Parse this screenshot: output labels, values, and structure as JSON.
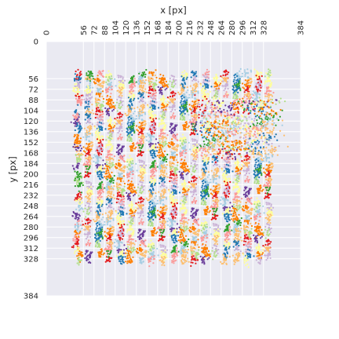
{
  "chart_data": {
    "type": "scatter",
    "title": "",
    "xlabel": "x [px]",
    "ylabel": "y [px]",
    "x_axis_position": "top",
    "y_axis_inverted": true,
    "xlim": [
      0,
      384
    ],
    "ylim": [
      0,
      384
    ],
    "grid": true,
    "legend": "none",
    "xticks": [
      0,
      56,
      72,
      88,
      104,
      120,
      136,
      152,
      168,
      184,
      200,
      216,
      232,
      248,
      264,
      280,
      296,
      312,
      328,
      384
    ],
    "yticks": [
      0,
      56,
      72,
      88,
      104,
      120,
      136,
      152,
      168,
      184,
      200,
      216,
      232,
      248,
      264,
      280,
      296,
      312,
      328,
      384
    ],
    "point_cloud": {
      "x_range": [
        48,
        345
      ],
      "y_range": [
        50,
        336
      ],
      "column_spacing": 16,
      "row_spacing": 16,
      "cluster_spread": 4,
      "turbulent_region": {
        "x_range": [
          225,
          345
        ],
        "y_range": [
          85,
          175
        ]
      }
    },
    "palette": [
      "#a6cee3",
      "#1f78b4",
      "#b2df8a",
      "#33a02c",
      "#fb9a99",
      "#e31a1c",
      "#fdbf6f",
      "#ff7f00",
      "#cab2d6",
      "#6a3d9a",
      "#ffff99"
    ]
  },
  "colors": {
    "plot_background": "#eaeaf2",
    "grid": "#ffffff",
    "text": "#262626"
  }
}
